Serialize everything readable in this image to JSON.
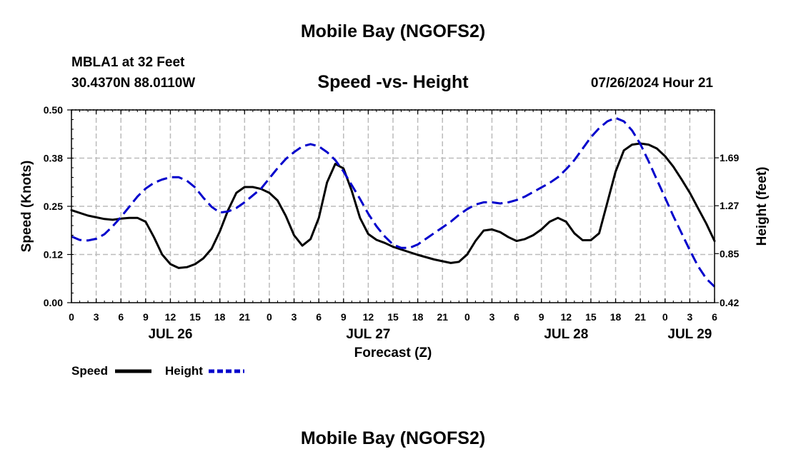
{
  "page": {
    "title": "Mobile Bay (NGOFS2)",
    "bottom_title": "Mobile Bay (NGOFS2)"
  },
  "station": {
    "name": "MBLA1 at 32 Feet",
    "coords": "30.4370N  88.0110W"
  },
  "colors": {
    "speed": "#000000",
    "height": "#0000cc",
    "grid": "#bbbbbb"
  },
  "chart_data": {
    "type": "line",
    "title": "Speed -vs- Height",
    "timestamp": "07/26/2024 Hour 21",
    "xlabel": "Forecast (Z)",
    "ylabel": "Speed (Knots)",
    "y2label": "Height (feet)",
    "xlim": [
      0,
      78
    ],
    "ylim": [
      0,
      0.5
    ],
    "y2lim": [
      0.42,
      2.11
    ],
    "x_ticks": [
      {
        "x": 0,
        "label": "0"
      },
      {
        "x": 3,
        "label": "3"
      },
      {
        "x": 6,
        "label": "6"
      },
      {
        "x": 9,
        "label": "9"
      },
      {
        "x": 12,
        "label": "12"
      },
      {
        "x": 15,
        "label": "15"
      },
      {
        "x": 18,
        "label": "18"
      },
      {
        "x": 21,
        "label": "21"
      },
      {
        "x": 24,
        "label": "0"
      },
      {
        "x": 27,
        "label": "3"
      },
      {
        "x": 30,
        "label": "6"
      },
      {
        "x": 33,
        "label": "9"
      },
      {
        "x": 36,
        "label": "12"
      },
      {
        "x": 39,
        "label": "15"
      },
      {
        "x": 42,
        "label": "18"
      },
      {
        "x": 45,
        "label": "21"
      },
      {
        "x": 48,
        "label": "0"
      },
      {
        "x": 51,
        "label": "3"
      },
      {
        "x": 54,
        "label": "6"
      },
      {
        "x": 57,
        "label": "9"
      },
      {
        "x": 60,
        "label": "12"
      },
      {
        "x": 63,
        "label": "15"
      },
      {
        "x": 66,
        "label": "18"
      },
      {
        "x": 69,
        "label": "21"
      },
      {
        "x": 72,
        "label": "0"
      },
      {
        "x": 75,
        "label": "3"
      },
      {
        "x": 78,
        "label": "6"
      }
    ],
    "day_labels": [
      {
        "x": 12,
        "label": "JUL 26"
      },
      {
        "x": 36,
        "label": "JUL 27"
      },
      {
        "x": 60,
        "label": "JUL 28"
      },
      {
        "x": 75,
        "label": "JUL 29"
      }
    ],
    "y_ticks": [
      {
        "v": 0.0,
        "label": "0.00"
      },
      {
        "v": 0.125,
        "label": "0.12"
      },
      {
        "v": 0.25,
        "label": "0.25"
      },
      {
        "v": 0.375,
        "label": "0.38"
      },
      {
        "v": 0.5,
        "label": "0.50"
      }
    ],
    "y2_ticks": [
      {
        "v": 0.42,
        "label": "0.42"
      },
      {
        "v": 0.85,
        "label": "0.85"
      },
      {
        "v": 1.27,
        "label": "1.27"
      },
      {
        "v": 1.69,
        "label": "1.69"
      }
    ],
    "series": [
      {
        "name": "Speed",
        "axis": "left",
        "x": [
          0,
          2,
          4,
          5,
          6,
          7,
          8,
          9,
          10,
          11,
          12,
          13,
          14,
          15,
          16,
          17,
          18,
          19,
          20,
          21,
          22,
          23,
          24,
          25,
          26,
          27,
          28,
          29,
          30,
          31,
          32,
          33,
          34,
          35,
          36,
          37,
          38,
          39,
          40,
          42,
          44,
          46,
          47,
          48,
          49,
          50,
          51,
          52,
          53,
          54,
          55,
          56,
          57,
          58,
          59,
          60,
          61,
          62,
          63,
          64,
          65,
          66,
          67,
          68,
          69,
          70,
          71,
          72,
          73,
          74,
          75,
          76,
          77,
          78
        ],
        "values": [
          0.24,
          0.226,
          0.217,
          0.215,
          0.218,
          0.22,
          0.22,
          0.21,
          0.17,
          0.125,
          0.1,
          0.09,
          0.092,
          0.1,
          0.115,
          0.14,
          0.185,
          0.24,
          0.285,
          0.3,
          0.3,
          0.295,
          0.285,
          0.265,
          0.225,
          0.175,
          0.148,
          0.165,
          0.22,
          0.312,
          0.36,
          0.348,
          0.29,
          0.22,
          0.178,
          0.163,
          0.155,
          0.145,
          0.138,
          0.124,
          0.112,
          0.103,
          0.106,
          0.125,
          0.16,
          0.187,
          0.19,
          0.183,
          0.17,
          0.16,
          0.165,
          0.175,
          0.19,
          0.21,
          0.22,
          0.21,
          0.18,
          0.162,
          0.162,
          0.18,
          0.26,
          0.34,
          0.395,
          0.41,
          0.413,
          0.41,
          0.4,
          0.38,
          0.353,
          0.32,
          0.285,
          0.245,
          0.205,
          0.16
        ]
      },
      {
        "name": "Height",
        "axis": "right",
        "x": [
          0,
          1,
          2,
          3,
          4,
          5,
          6,
          7,
          8,
          9,
          10,
          11,
          12,
          13,
          14,
          15,
          16,
          17,
          18,
          19,
          20,
          21,
          22,
          23,
          24,
          25,
          26,
          27,
          28,
          29,
          30,
          31,
          32,
          33,
          34,
          35,
          36,
          37,
          38,
          39,
          40,
          41,
          42,
          43,
          44,
          45,
          46,
          47,
          48,
          49,
          50,
          51,
          52,
          53,
          54,
          55,
          56,
          57,
          58,
          59,
          60,
          61,
          62,
          63,
          64,
          65,
          66,
          67,
          68,
          69,
          70,
          71,
          72,
          73,
          74,
          75,
          76,
          77,
          78
        ],
        "values": [
          1.0,
          0.97,
          0.965,
          0.98,
          1.02,
          1.09,
          1.17,
          1.26,
          1.35,
          1.42,
          1.47,
          1.5,
          1.52,
          1.52,
          1.49,
          1.43,
          1.34,
          1.26,
          1.21,
          1.22,
          1.25,
          1.3,
          1.36,
          1.42,
          1.51,
          1.6,
          1.68,
          1.74,
          1.79,
          1.81,
          1.79,
          1.74,
          1.67,
          1.57,
          1.45,
          1.33,
          1.2,
          1.09,
          1.0,
          0.93,
          0.9,
          0.9,
          0.93,
          0.98,
          1.03,
          1.08,
          1.13,
          1.19,
          1.24,
          1.28,
          1.3,
          1.3,
          1.29,
          1.3,
          1.32,
          1.35,
          1.39,
          1.43,
          1.47,
          1.52,
          1.59,
          1.67,
          1.77,
          1.87,
          1.95,
          2.01,
          2.04,
          2.01,
          1.93,
          1.81,
          1.66,
          1.5,
          1.34,
          1.18,
          1.03,
          0.88,
          0.74,
          0.63,
          0.56
        ]
      }
    ],
    "legend": {
      "speed_label": "Speed",
      "height_label": "Height",
      "position": "bottom-left"
    }
  }
}
